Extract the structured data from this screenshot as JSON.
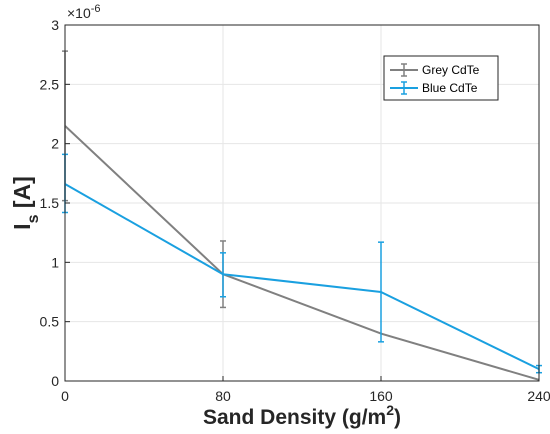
{
  "chart_data": {
    "type": "line",
    "x": [
      0,
      80,
      160,
      240
    ],
    "xticks": [
      "0",
      "80",
      "160",
      "240"
    ],
    "yticks": [
      "0",
      "0.5",
      "1",
      "1.5",
      "2",
      "2.5",
      "3"
    ],
    "xlim": [
      0,
      240
    ],
    "ylim": [
      0,
      3
    ],
    "y_exponent_label": "×10",
    "y_exponent_power": "-6",
    "xlabel_main": "Sand Density (g/m",
    "xlabel_sup": "2",
    "xlabel_end": ")",
    "ylabel_main": "I",
    "ylabel_sub": "s",
    "ylabel_end": " [A]",
    "grid": true,
    "legend_position": "top-right",
    "series": [
      {
        "name": "Grey CdTe",
        "color": "#808080",
        "values": [
          2.15,
          0.9,
          0.4,
          0.01
        ],
        "error_low": [
          1.52,
          0.62,
          null,
          null
        ],
        "error_high": [
          2.78,
          1.18,
          null,
          null
        ]
      },
      {
        "name": "Blue CdTe",
        "color": "#1aa0e0",
        "values": [
          1.66,
          0.9,
          0.75,
          0.1
        ],
        "error_low": [
          1.42,
          0.71,
          0.33,
          0.07
        ],
        "error_high": [
          1.91,
          1.08,
          1.17,
          0.13
        ]
      }
    ]
  }
}
